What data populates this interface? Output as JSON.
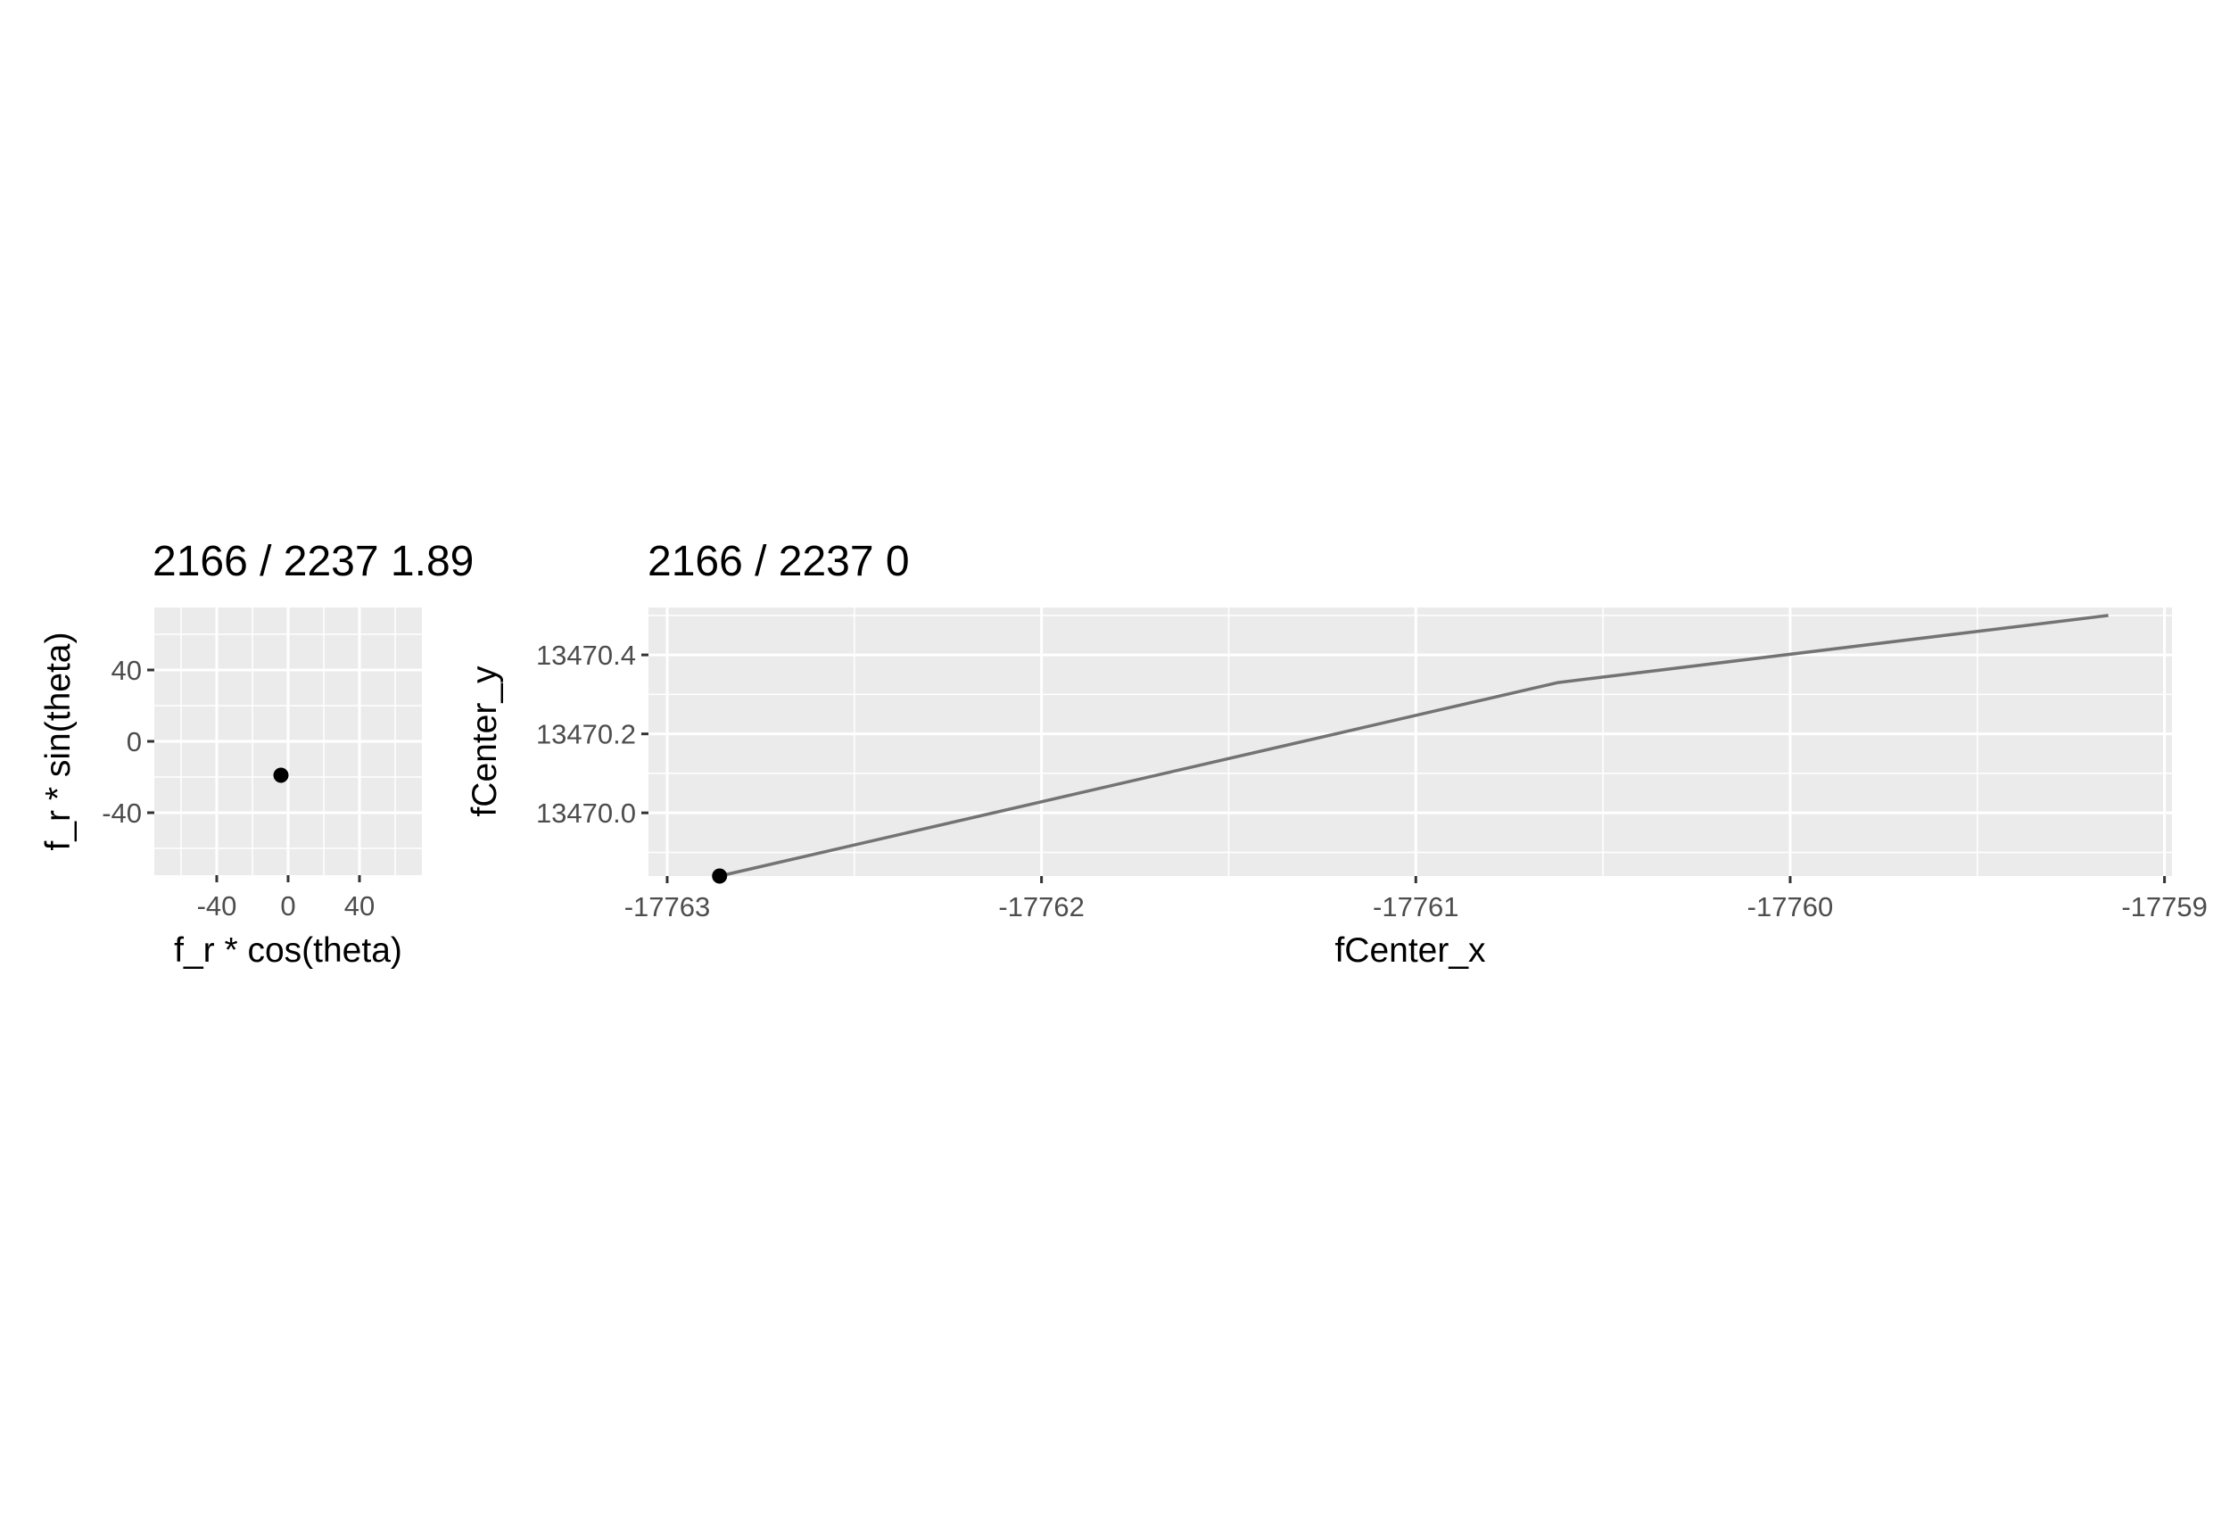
{
  "chart_data": [
    {
      "type": "scatter",
      "title": "2166 / 2237 1.89",
      "xlabel": "f_r * cos(theta)",
      "ylabel": "f_r * sin(theta)",
      "xlim": [
        -75,
        75
      ],
      "ylim": [
        -75,
        75
      ],
      "x_ticks": [
        -40,
        0,
        40
      ],
      "x_tick_labels": [
        "-40",
        "0",
        "40"
      ],
      "y_ticks": [
        -40,
        0,
        40
      ],
      "y_tick_labels": [
        "-40",
        "0",
        "40"
      ],
      "grid": true,
      "points": [
        {
          "x": -4,
          "y": -19
        }
      ],
      "colors": {
        "panel": "#ebebeb",
        "grid": "#ffffff",
        "point": "#000000"
      }
    },
    {
      "type": "line",
      "title": "2166 / 2237 0",
      "xlabel": "fCenter_x",
      "ylabel": "fCenter_y",
      "xlim": [
        -17763.05,
        -17758.98
      ],
      "ylim": [
        13469.84,
        13470.52
      ],
      "x_ticks": [
        -17763,
        -17762,
        -17761,
        -17760,
        -17759
      ],
      "x_tick_labels": [
        "-17763",
        "-17762",
        "-17761",
        "-17760",
        "-17759"
      ],
      "y_ticks": [
        13470.0,
        13470.2,
        13470.4
      ],
      "y_tick_labels": [
        "13470.0",
        "13470.2",
        "13470.4"
      ],
      "grid": true,
      "series": [
        {
          "x": [
            -17762.86,
            -17760.62,
            -17759.15
          ],
          "y": [
            13469.84,
            13470.33,
            13470.5
          ]
        }
      ],
      "highlight_point": {
        "x": -17762.86,
        "y": 13469.84
      },
      "colors": {
        "panel": "#ebebeb",
        "grid": "#ffffff",
        "line": "#737373",
        "point": "#000000"
      }
    }
  ]
}
